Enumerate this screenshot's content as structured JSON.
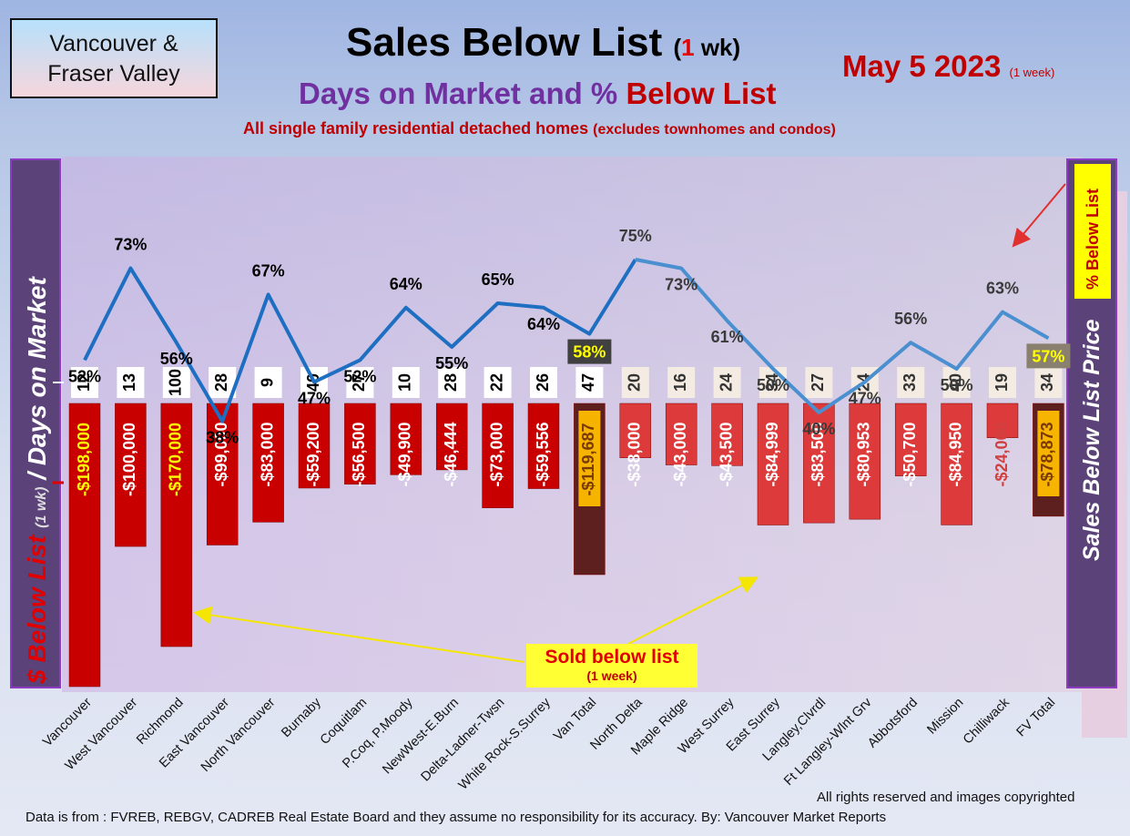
{
  "region": {
    "line1": "Vancouver &",
    "line2": "Fraser Valley"
  },
  "title": {
    "main": "Sales Below List",
    "paren_open": "(",
    "paren_num": "1",
    "paren_rest": " wk)"
  },
  "subtitle": {
    "part1": "Days on Market and % ",
    "part2": "Below List"
  },
  "note": {
    "main": "All single family residential detached homes",
    "small": "(excludes townhomes and condos)"
  },
  "date": {
    "main": "May 5  2023",
    "small": "(1 week)"
  },
  "left_axis": {
    "part1": "$ Below List",
    "part2": "(1 wk)",
    "part3": "/ Days on Market"
  },
  "right_axis": {
    "label": "Sales Below List Price"
  },
  "pct_badge": "% Below List",
  "sold_box": {
    "line1": "Sold below list",
    "line2": "(1 week)"
  },
  "footer": {
    "rights": "All rights reserved and  images copyrighted",
    "source": "Data is from : FVREB, REBGV, CADREB Real Estate Board and they assume no responsibility for its accuracy. By: Vancouver Market Reports"
  },
  "colors": {
    "bar_red": "#c80000",
    "bar_fv": "#dd3b3b",
    "total": "#5e1f1f",
    "line_van": "#1e6fc2",
    "line_fv": "#4a8fcf"
  },
  "chart_data": {
    "type": "bar+line",
    "categories": [
      "Vancouver",
      "West Vancouver",
      "Richmond",
      "East Vancouver",
      "North Vancouver",
      "Burnaby",
      "Coquitlam",
      "P.Coq, P.Moody",
      "NewWest-E.Burn",
      "Delta-Ladner-Twsn",
      "White Rock-S.Surrey",
      "Van Total",
      "North Delta",
      "Maple Ridge",
      "West Surrey",
      "East Surrey",
      "Langley,Clvrdl",
      "Ft Langley-Wlnt Grv",
      "Abbotsford",
      "Mission",
      "Chilliwack",
      "FV Total"
    ],
    "below_list": [
      -198000,
      -100000,
      -170000,
      -99000,
      -83000,
      -59200,
      -56500,
      -49900,
      -46444,
      -73000,
      -59556,
      -119687,
      -38000,
      -43000,
      -43500,
      -84999,
      -83500,
      -80953,
      -50700,
      -84950,
      -24000,
      -78873
    ],
    "below_list_labels": [
      "-$198,000",
      "-$100,000",
      "-$170,000",
      "-$99,000",
      "-$83,000",
      "-$59,200",
      "-$56,500",
      "-$49,900",
      "-$46,444",
      "-$73,000",
      "-$59,556",
      "-$119,687",
      "-$38,000",
      "-$43,000",
      "-$43,500",
      "-$84,999",
      "-$83,500",
      "-$80,953",
      "-$50,700",
      "-$84,950",
      "-$24,000",
      "-$78,873"
    ],
    "days_on_market": [
      12,
      13,
      100,
      28,
      9,
      40,
      27,
      10,
      28,
      22,
      26,
      47,
      20,
      16,
      24,
      34,
      27,
      24,
      33,
      40,
      19,
      34
    ],
    "pct_below_list": [
      52,
      73,
      56,
      38,
      67,
      47,
      52,
      64,
      55,
      65,
      64,
      58,
      75,
      73,
      61,
      50,
      40,
      47,
      56,
      50,
      63,
      57
    ],
    "pct_labels": [
      "52%",
      "73%",
      "56%",
      "38%",
      "67%",
      "47%",
      "52%",
      "64%",
      "55%",
      "65%",
      "64%",
      "58%",
      "75%",
      "73%",
      "61%",
      "50%",
      "40%",
      "47%",
      "56%",
      "50%",
      "63%",
      "57%"
    ],
    "series": [
      {
        "name": "$ Below List (1 wk)",
        "type": "bar"
      },
      {
        "name": "Days on Market",
        "type": "label"
      },
      {
        "name": "% Below List",
        "type": "line"
      }
    ]
  }
}
